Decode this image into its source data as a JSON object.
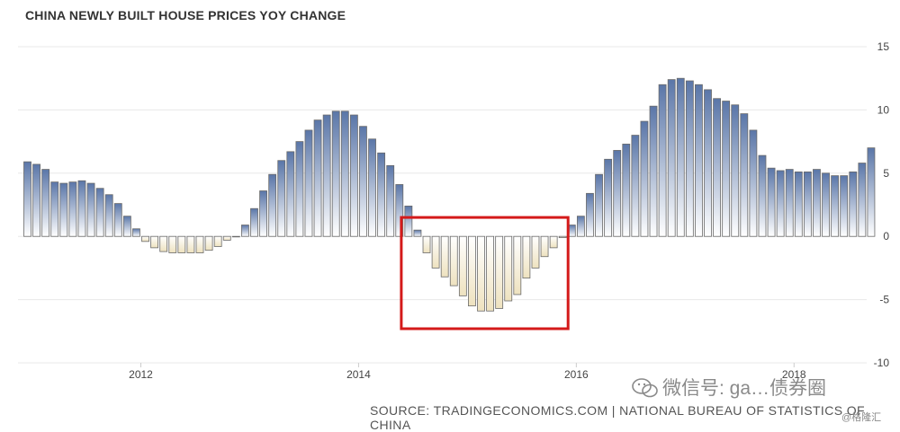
{
  "chart_data": {
    "type": "bar",
    "title": "CHINA NEWLY BUILT HOUSE PRICES YOY CHANGE",
    "xlabel": "",
    "ylabel": "",
    "ylim": [
      -10,
      15
    ],
    "yticks": [
      15,
      10,
      5,
      0,
      -5,
      -10
    ],
    "x_tick_labels": [
      "2012",
      "2014",
      "2016",
      "2018"
    ],
    "x_tick_months": [
      13,
      37,
      61,
      85
    ],
    "x_start": "2011-01",
    "frequency": "monthly",
    "grid": true,
    "legend": "none",
    "y_axis_side": "right",
    "months": [
      "2011-01",
      "2011-02",
      "2011-03",
      "2011-04",
      "2011-05",
      "2011-06",
      "2011-07",
      "2011-08",
      "2011-09",
      "2011-10",
      "2011-11",
      "2011-12",
      "2012-01",
      "2012-02",
      "2012-03",
      "2012-04",
      "2012-05",
      "2012-06",
      "2012-07",
      "2012-08",
      "2012-09",
      "2012-10",
      "2012-11",
      "2012-12",
      "2013-01",
      "2013-02",
      "2013-03",
      "2013-04",
      "2013-05",
      "2013-06",
      "2013-07",
      "2013-08",
      "2013-09",
      "2013-10",
      "2013-11",
      "2013-12",
      "2014-01",
      "2014-02",
      "2014-03",
      "2014-04",
      "2014-05",
      "2014-06",
      "2014-07",
      "2014-08",
      "2014-09",
      "2014-10",
      "2014-11",
      "2014-12",
      "2015-01",
      "2015-02",
      "2015-03",
      "2015-04",
      "2015-05",
      "2015-06",
      "2015-07",
      "2015-08",
      "2015-09",
      "2015-10",
      "2015-11",
      "2015-12",
      "2016-01",
      "2016-02",
      "2016-03",
      "2016-04",
      "2016-05",
      "2016-06",
      "2016-07",
      "2016-08",
      "2016-09",
      "2016-10",
      "2016-11",
      "2016-12",
      "2017-01",
      "2017-02",
      "2017-03",
      "2017-04",
      "2017-05",
      "2017-06",
      "2017-07",
      "2017-08",
      "2017-09",
      "2017-10",
      "2017-11",
      "2017-12",
      "2018-01",
      "2018-02",
      "2018-03",
      "2018-04",
      "2018-05",
      "2018-06",
      "2018-07",
      "2018-08",
      "2018-09",
      "2018-10"
    ],
    "values": [
      5.9,
      5.7,
      5.3,
      4.3,
      4.2,
      4.3,
      4.4,
      4.2,
      3.8,
      3.3,
      2.6,
      1.6,
      0.6,
      -0.4,
      -0.9,
      -1.2,
      -1.3,
      -1.3,
      -1.3,
      -1.3,
      -1.1,
      -0.8,
      -0.3,
      0.0,
      0.9,
      2.2,
      3.6,
      4.9,
      6.0,
      6.7,
      7.5,
      8.4,
      9.2,
      9.6,
      9.9,
      9.9,
      9.6,
      8.7,
      7.7,
      6.6,
      5.6,
      4.1,
      2.4,
      0.5,
      -1.3,
      -2.5,
      -3.2,
      -3.9,
      -4.7,
      -5.5,
      -5.9,
      -5.9,
      -5.7,
      -5.1,
      -4.6,
      -3.3,
      -2.5,
      -1.6,
      -0.9,
      -0.1,
      0.9,
      1.6,
      3.4,
      4.9,
      6.1,
      6.8,
      7.3,
      8.0,
      9.1,
      10.3,
      12.0,
      12.4,
      12.5,
      12.3,
      12.0,
      11.6,
      10.9,
      10.7,
      10.4,
      9.7,
      8.4,
      6.4,
      5.4,
      5.2,
      5.3,
      5.1,
      5.1,
      5.3,
      5.0,
      4.8,
      4.8,
      5.1,
      5.8,
      7.0
    ]
  },
  "highlight_box": {
    "x_start_month": "2014-08",
    "x_end_month": "2015-12",
    "y_top": 1.5,
    "y_bottom": -7.3,
    "color": "#d41a1a"
  },
  "source": "SOURCE: TRADINGECONOMICS.COM | NATIONAL BUREAU OF STATISTICS OF CHINA",
  "watermark": {
    "text": "微信号: ga…债券圈",
    "corner": "@格隆汇"
  },
  "colors": {
    "positive_top": "#5a76a8",
    "positive_bottom": "#ffffff",
    "negative_top": "#ffffff",
    "negative_bottom": "#eee2bf",
    "bar_stroke": "#6a6a6a",
    "grid": "#e8e8e8"
  }
}
